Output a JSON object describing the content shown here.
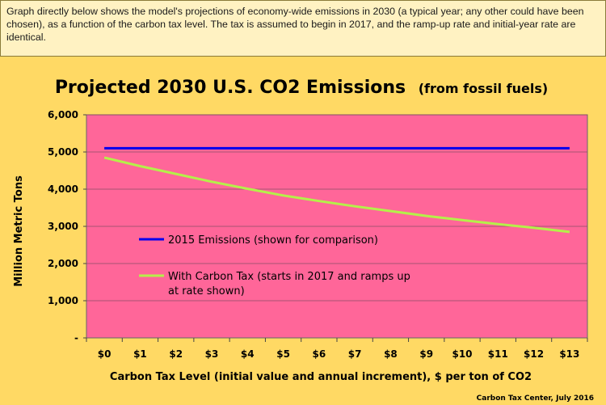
{
  "note": {
    "text": "Graph directly below shows the model's projections of economy-wide emissions in 2030 (a typical year; any other could have been chosen), as a function of the carbon tax level. The tax is assumed to begin in 2017, and the ramp-up rate and initial-year rate are identical."
  },
  "chart_data": {
    "type": "line",
    "title": "Projected 2030 U.S. CO2 Emissions",
    "title_suffix": "(from fossil fuels)",
    "xlabel": "Carbon Tax Level (initial value and annual increment), $ per ton of CO2",
    "ylabel": "Million Metric Tons",
    "categories": [
      "$0",
      "$1",
      "$2",
      "$3",
      "$4",
      "$5",
      "$6",
      "$7",
      "$8",
      "$9",
      "$10",
      "$11",
      "$12",
      "$13"
    ],
    "y_tick_labels": [
      "-",
      "1,000",
      "2,000",
      "3,000",
      "4,000",
      "5,000",
      "6,000"
    ],
    "y_ticks": [
      0,
      1000,
      2000,
      3000,
      4000,
      5000,
      6000
    ],
    "ylim": [
      0,
      6000
    ],
    "grid": true,
    "plot_background": "#ff6699",
    "series": [
      {
        "name": "2015 Emissions (shown for comparison)",
        "color": "#0000ee",
        "values": [
          5100,
          5100,
          5100,
          5100,
          5100,
          5100,
          5100,
          5100,
          5100,
          5100,
          5100,
          5100,
          5100,
          5100
        ]
      },
      {
        "name": "With Carbon Tax (starts in 2017 and ramps up at rate shown)",
        "name_lines": [
          "With Carbon Tax (starts in 2017 and ramps up",
          "at rate shown)"
        ],
        "color": "#b4f04a",
        "values": [
          4850,
          4620,
          4410,
          4200,
          4010,
          3830,
          3680,
          3540,
          3410,
          3280,
          3170,
          3060,
          2960,
          2850
        ]
      }
    ],
    "credit": "Carbon Tax Center, July 2016"
  }
}
